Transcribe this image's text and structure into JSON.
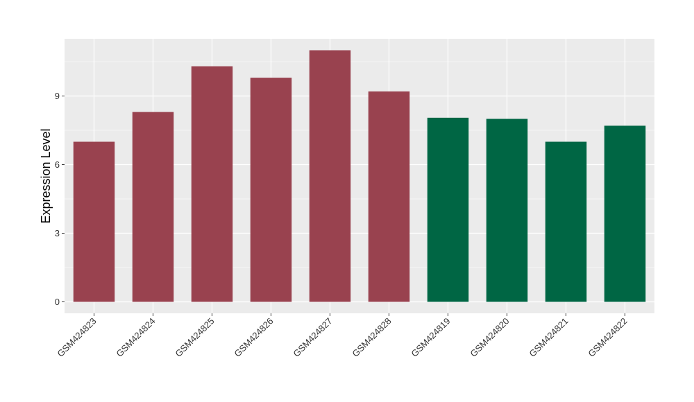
{
  "chart_data": {
    "type": "bar",
    "title": "",
    "xlabel": "",
    "ylabel": "Expression Level",
    "ylim": [
      -0.5,
      11.5
    ],
    "yticks": [
      0,
      3,
      6,
      9
    ],
    "grid": true,
    "legend": "none",
    "categories": [
      "GSM424823",
      "GSM424824",
      "GSM424825",
      "GSM424826",
      "GSM424827",
      "GSM424828",
      "GSM424819",
      "GSM424820",
      "GSM424821",
      "GSM424822"
    ],
    "values": [
      7.0,
      8.3,
      10.3,
      9.8,
      11.0,
      9.2,
      8.05,
      8.0,
      7.0,
      7.7
    ],
    "groups": [
      0,
      0,
      0,
      0,
      0,
      0,
      1,
      1,
      1,
      1
    ],
    "colors": [
      "#99424f",
      "#006644"
    ],
    "panel_color": "#ebebeb",
    "grid_color": "#ffffff"
  }
}
